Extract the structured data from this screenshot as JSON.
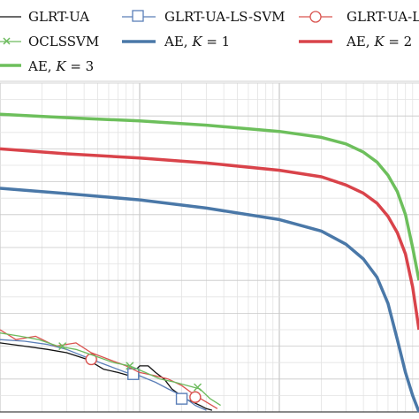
{
  "chart_data": {
    "type": "line",
    "title": "",
    "xlabel": "",
    "ylabel": "",
    "x_scale": "log",
    "y_scale": "linear",
    "grid": true,
    "legend_placement": "top",
    "xlim": [
      0.001,
      1
    ],
    "ylim": [
      0,
      1
    ],
    "legend": [
      {
        "name": "GLRT-UA",
        "color": "#111111",
        "marker": "none",
        "lw": 1.3
      },
      {
        "name": "GLRT-UA-LS-SVM",
        "color": "#5b7fb8",
        "marker": "square",
        "lw": 1.3
      },
      {
        "name": "GLRT-UA-LS-SVM",
        "color": "#d9534f",
        "marker": "circle",
        "lw": 1.3
      },
      {
        "name": "OCLSSVM",
        "color": "#6dbb5e",
        "marker": "x",
        "lw": 1.3
      },
      {
        "name": "AE, K = 1",
        "color": "#4a78a8",
        "marker": "none",
        "lw": 3.5
      },
      {
        "name": "AE, K = 2",
        "color": "#d9434a",
        "marker": "none",
        "lw": 3.5
      },
      {
        "name": "AE, K = 3",
        "color": "#6dbf5c",
        "marker": "none",
        "lw": 3.5
      }
    ],
    "legend_labels": {
      "l1": "GLRT-UA",
      "l2": "GLRT-UA-LS-SVM",
      "l3": "GLRT-UA-LS-SVM",
      "l4": "OCLSSVM",
      "l5": "AE, ",
      "l5k": "K",
      "l5v": " = 1",
      "l6": "AE, ",
      "l6k": "K",
      "l6v": " = 2",
      "l7": "AE, ",
      "l7k": "K",
      "l7v": " = 3"
    },
    "series": [
      {
        "name": "AE, K = 3",
        "color": "#6dbf5c",
        "lw": 3.5,
        "x": [
          0.001,
          0.003,
          0.01,
          0.03,
          0.1,
          0.2,
          0.3,
          0.4,
          0.5,
          0.6,
          0.7,
          0.8,
          0.9,
          1.0
        ],
        "y": [
          0.905,
          0.895,
          0.885,
          0.872,
          0.853,
          0.835,
          0.815,
          0.79,
          0.76,
          0.72,
          0.67,
          0.6,
          0.5,
          0.4
        ]
      },
      {
        "name": "AE, K = 2",
        "color": "#d9434a",
        "lw": 3.5,
        "x": [
          0.001,
          0.003,
          0.01,
          0.03,
          0.1,
          0.2,
          0.3,
          0.4,
          0.5,
          0.6,
          0.7,
          0.8,
          0.9,
          1.0
        ],
        "y": [
          0.8,
          0.785,
          0.772,
          0.757,
          0.735,
          0.715,
          0.69,
          0.665,
          0.635,
          0.595,
          0.545,
          0.48,
          0.38,
          0.25
        ]
      },
      {
        "name": "AE, K = 1",
        "color": "#4a78a8",
        "lw": 3.5,
        "x": [
          0.001,
          0.003,
          0.01,
          0.03,
          0.1,
          0.2,
          0.3,
          0.4,
          0.5,
          0.6,
          0.7,
          0.8,
          0.9,
          1.0
        ],
        "y": [
          0.68,
          0.664,
          0.645,
          0.62,
          0.585,
          0.55,
          0.51,
          0.465,
          0.41,
          0.33,
          0.22,
          0.12,
          0.05,
          0.0
        ]
      },
      {
        "name": "GLRT-UA",
        "color": "#111111",
        "lw": 1.3,
        "x": [
          0.001,
          0.0015,
          0.0022,
          0.003,
          0.0042,
          0.0055,
          0.007,
          0.0085,
          0.01,
          0.0115,
          0.013,
          0.015,
          0.017,
          0.019,
          0.021,
          0.024,
          0.027,
          0.03,
          0.033
        ],
        "y": [
          0.21,
          0.2,
          0.19,
          0.18,
          0.16,
          0.13,
          0.12,
          0.11,
          0.14,
          0.14,
          0.12,
          0.1,
          0.07,
          0.055,
          0.04,
          0.03,
          0.02,
          0.01,
          0.005
        ]
      },
      {
        "name": "GLRT-UA-LS-SVM",
        "color": "#5b7fb8",
        "lw": 1.3,
        "marker": "square",
        "x": [
          0.001,
          0.0015,
          0.0022,
          0.003,
          0.0045,
          0.006,
          0.008,
          0.01,
          0.013,
          0.016,
          0.02,
          0.025,
          0.03
        ],
        "y": [
          0.22,
          0.215,
          0.205,
          0.19,
          0.16,
          0.14,
          0.12,
          0.11,
          0.09,
          0.07,
          0.05,
          0.02,
          0.005
        ],
        "marker_x": [
          0.009,
          0.02
        ],
        "marker_y": [
          0.115,
          0.04
        ]
      },
      {
        "name": "GLRT-UA-LS-SVM",
        "color": "#d9534f",
        "lw": 1.3,
        "marker": "circle",
        "x": [
          0.001,
          0.0013,
          0.0018,
          0.0025,
          0.0035,
          0.0045,
          0.006,
          0.008,
          0.01,
          0.013,
          0.016,
          0.02,
          0.025,
          0.03,
          0.036
        ],
        "y": [
          0.25,
          0.22,
          0.23,
          0.2,
          0.21,
          0.18,
          0.16,
          0.14,
          0.12,
          0.11,
          0.1,
          0.08,
          0.05,
          0.03,
          0.01
        ],
        "marker_x": [
          0.0045,
          0.025
        ],
        "marker_y": [
          0.16,
          0.045
        ]
      },
      {
        "name": "OCLSSVM",
        "color": "#6dbb5e",
        "lw": 1.3,
        "marker": "x",
        "x": [
          0.001,
          0.0014,
          0.0019,
          0.0026,
          0.0035,
          0.0048,
          0.0065,
          0.0085,
          0.011,
          0.014,
          0.018,
          0.022,
          0.027,
          0.032,
          0.038
        ],
        "y": [
          0.24,
          0.23,
          0.22,
          0.2,
          0.19,
          0.17,
          0.15,
          0.14,
          0.12,
          0.1,
          0.09,
          0.08,
          0.07,
          0.04,
          0.02
        ],
        "marker_x": [
          0.0028,
          0.0085,
          0.026
        ],
        "marker_y": [
          0.2,
          0.14,
          0.075
        ]
      }
    ]
  }
}
